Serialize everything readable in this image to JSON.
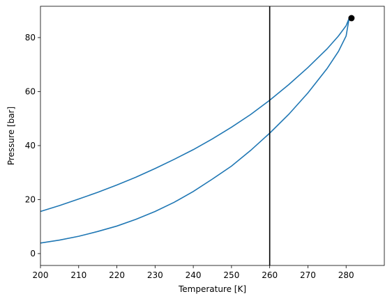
{
  "chart_data": {
    "type": "line",
    "xlabel": "Temperature [K]",
    "ylabel": "Pressure [bar]",
    "xlim": [
      200,
      290
    ],
    "ylim": [
      -4.4,
      91.6
    ],
    "x_ticks": [
      200,
      210,
      220,
      230,
      240,
      250,
      260,
      270,
      280
    ],
    "x_tick_labels": [
      "200",
      "210",
      "220",
      "230",
      "240",
      "250",
      "260",
      "270",
      "280"
    ],
    "y_ticks": [
      0,
      20,
      40,
      60,
      80
    ],
    "y_tick_labels": [
      "0",
      "20",
      "40",
      "60",
      "80"
    ],
    "grid": false,
    "colors": {
      "series": "#1f77b4",
      "marker": "#000000",
      "vline": "#000000"
    },
    "series": [
      {
        "x": [
          200,
          205,
          210,
          215,
          220,
          225,
          230,
          235,
          240,
          245,
          250,
          255,
          260,
          265,
          270,
          275,
          278,
          280,
          280.8
        ],
        "y": [
          15.6,
          17.8,
          20.2,
          22.7,
          25.4,
          28.3,
          31.5,
          34.9,
          38.5,
          42.5,
          46.8,
          51.5,
          56.8,
          62.6,
          68.9,
          75.8,
          80.6,
          84.4,
          87.2
        ]
      },
      {
        "x": [
          200,
          205,
          210,
          215,
          220,
          225,
          230,
          235,
          240,
          245,
          250,
          255,
          260,
          265,
          270,
          275,
          278,
          280,
          280.8
        ],
        "y": [
          3.9,
          5.0,
          6.4,
          8.2,
          10.2,
          12.7,
          15.6,
          19.0,
          23.0,
          27.6,
          32.4,
          38.2,
          44.6,
          51.6,
          59.5,
          68.5,
          74.9,
          80.6,
          87.2
        ]
      }
    ],
    "vline": {
      "x": 260
    },
    "point": {
      "x": 281.4,
      "y": 87.2
    }
  }
}
